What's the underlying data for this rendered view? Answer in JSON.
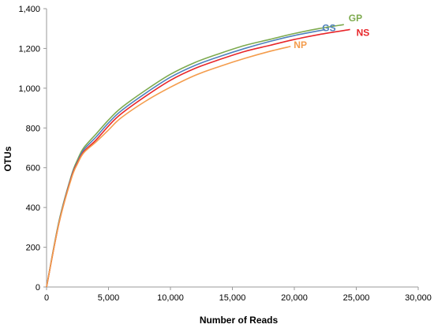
{
  "chart_data": {
    "type": "line",
    "xlabel": "Number of Reads",
    "ylabel": "OTUs",
    "xlim": [
      0,
      30000
    ],
    "ylim": [
      0,
      1400
    ],
    "x_ticks": [
      "0",
      "5,000",
      "10,000",
      "15,000",
      "20,000",
      "25,000",
      "30,000"
    ],
    "y_ticks": [
      "0",
      "200",
      "400",
      "600",
      "800",
      "1,000",
      "1,200",
      "1,400"
    ],
    "grid": false,
    "legend": "inline-labels-at-line-ends",
    "series": [
      {
        "name": "GP",
        "color": "#7DAA4E",
        "x": [
          0,
          1000,
          2000,
          2500,
          3000,
          4000,
          5000,
          6000,
          8000,
          10000,
          12000,
          14000,
          16000,
          18000,
          20000,
          22000,
          24000
        ],
        "y": [
          0,
          330,
          560,
          640,
          700,
          770,
          840,
          900,
          990,
          1070,
          1130,
          1175,
          1215,
          1245,
          1275,
          1300,
          1320
        ]
      },
      {
        "name": "GS",
        "color": "#4F81BD",
        "x": [
          0,
          1000,
          2000,
          2500,
          3000,
          4000,
          5000,
          6000,
          8000,
          10000,
          12000,
          14000,
          16000,
          18000,
          20000,
          22500
        ],
        "y": [
          0,
          325,
          555,
          630,
          690,
          755,
          825,
          885,
          975,
          1055,
          1115,
          1160,
          1200,
          1235,
          1265,
          1295
        ]
      },
      {
        "name": "NS",
        "color": "#E8262A",
        "x": [
          0,
          1000,
          2000,
          2500,
          3000,
          4000,
          5000,
          6000,
          8000,
          10000,
          12000,
          14000,
          16000,
          18000,
          20000,
          22000,
          24500
        ],
        "y": [
          0,
          320,
          550,
          625,
          680,
          740,
          810,
          870,
          960,
          1040,
          1100,
          1145,
          1185,
          1215,
          1245,
          1270,
          1295
        ]
      },
      {
        "name": "NP",
        "color": "#F49C4C",
        "x": [
          0,
          1000,
          2000,
          2500,
          3000,
          4000,
          5000,
          6000,
          8000,
          10000,
          12000,
          14000,
          16000,
          18000,
          19700
        ],
        "y": [
          0,
          320,
          545,
          620,
          675,
          730,
          790,
          850,
          935,
          1005,
          1065,
          1110,
          1150,
          1185,
          1210
        ]
      }
    ]
  }
}
